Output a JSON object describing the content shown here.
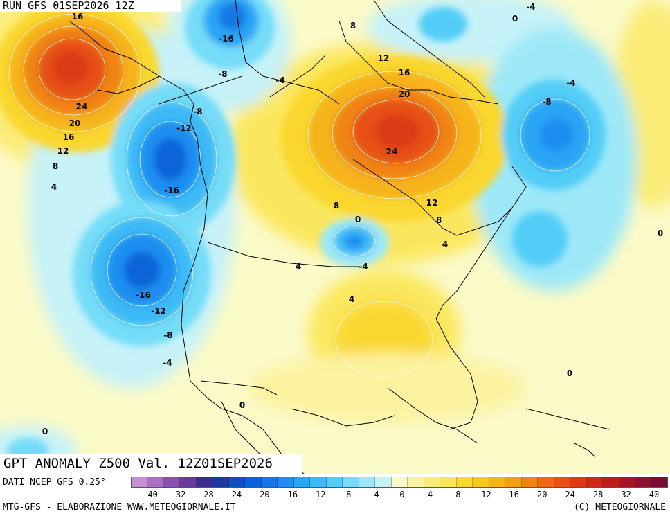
{
  "header": {
    "run_label": "RUN GFS 01SEP2026 12Z"
  },
  "map_title": "GPT ANOMALY Z500 Val. 12Z01SEP2026",
  "footer": {
    "source": "DATI NCEP GFS 0.25°",
    "credits_left": "MTG-GFS - ELABORAZIONE WWW.METEOGIORNALE.IT",
    "credits_right": "(C) METEOGIORNALE"
  },
  "colorbar": {
    "colors": [
      "#c58fd6",
      "#a86fc4",
      "#8a4fb0",
      "#6a3a9c",
      "#3a2d8f",
      "#1b3ba3",
      "#0e4fc4",
      "#0a63d8",
      "#1478e4",
      "#1f8ef0",
      "#2aa4f4",
      "#3cb9f6",
      "#52cdf7",
      "#74dcf8",
      "#9de8f8",
      "#c6f2f8",
      "#fafac8",
      "#fbf3a0",
      "#fbec78",
      "#fae45a",
      "#f9d72e",
      "#f8c71c",
      "#f6b31a",
      "#f49d18",
      "#f08316",
      "#ec6a14",
      "#e65012",
      "#dc3a12",
      "#cc2a16",
      "#b81e1e",
      "#a41626",
      "#901030",
      "#7c0a36"
    ],
    "tick_labels": [
      "-40",
      "-32",
      "-28",
      "-24",
      "-20",
      "-16",
      "-12",
      "-8",
      "-4",
      "0",
      "4",
      "8",
      "12",
      "16",
      "20",
      "24",
      "28",
      "32",
      "40"
    ]
  },
  "contour_labels": [
    {
      "text": "16",
      "name": "alaska-high"
    },
    {
      "text": "24",
      "name": "alaska-high"
    },
    {
      "text": "20",
      "name": "alaska-high"
    },
    {
      "text": "16",
      "name": "alaska-high"
    },
    {
      "text": "12",
      "name": "alaska-high"
    },
    {
      "text": "8",
      "name": "alaska-high"
    },
    {
      "text": "4",
      "name": "alaska-high"
    },
    {
      "text": "-16",
      "name": "gulf-alaska-low"
    },
    {
      "text": "-8",
      "name": "gulf-alaska-low"
    },
    {
      "text": "-8",
      "name": "pacific-low"
    },
    {
      "text": "-12",
      "name": "pacific-low"
    },
    {
      "text": "-16",
      "name": "pacific-low"
    },
    {
      "text": "-16",
      "name": "california-low"
    },
    {
      "text": "-12",
      "name": "california-low"
    },
    {
      "text": "-8",
      "name": "california-low"
    },
    {
      "text": "-4",
      "name": "california-low"
    },
    {
      "text": "0",
      "name": "mexico"
    },
    {
      "text": "0",
      "name": "pacific-south"
    },
    {
      "text": "-4",
      "name": "arctic"
    },
    {
      "text": "8",
      "name": "arctic"
    },
    {
      "text": "12",
      "name": "canada-high"
    },
    {
      "text": "16",
      "name": "canada-high"
    },
    {
      "text": "20",
      "name": "canada-high"
    },
    {
      "text": "24",
      "name": "canada-high"
    },
    {
      "text": "12",
      "name": "canada-high"
    },
    {
      "text": "8",
      "name": "canada-high"
    },
    {
      "text": "8",
      "name": "canada-high"
    },
    {
      "text": "4",
      "name": "canada-high"
    },
    {
      "text": "0",
      "name": "great-lakes-low"
    },
    {
      "text": "4",
      "name": "great-lakes-low"
    },
    {
      "text": "-4",
      "name": "great-lakes-low"
    },
    {
      "text": "4",
      "name": "us-high"
    },
    {
      "text": "-4",
      "name": "greenland"
    },
    {
      "text": "0",
      "name": "greenland"
    },
    {
      "text": "-4",
      "name": "atlantic-low"
    },
    {
      "text": "-8",
      "name": "atlantic-low"
    },
    {
      "text": "0",
      "name": "atlantic"
    },
    {
      "text": "0",
      "name": "atlantic"
    }
  ]
}
